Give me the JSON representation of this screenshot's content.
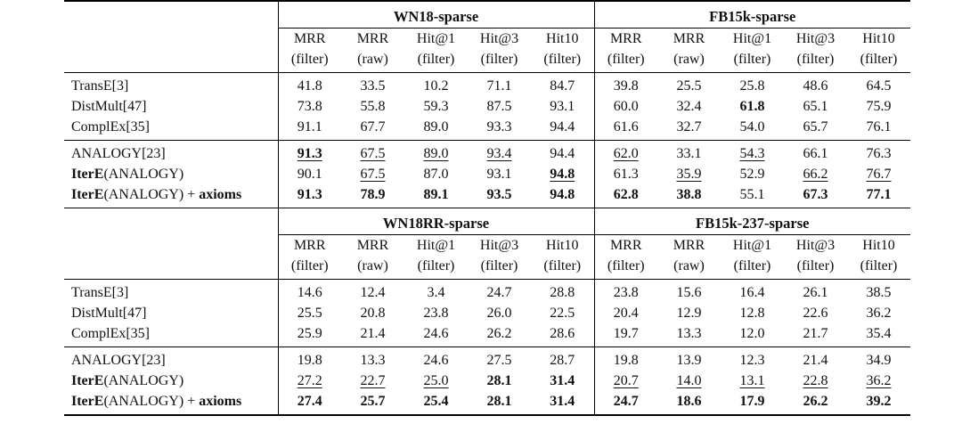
{
  "columns": [
    "MRR",
    "MRR",
    "Hit@1",
    "Hit@3",
    "Hit10"
  ],
  "columns_sub": [
    "(filter)",
    "(raw)",
    "(filter)",
    "(filter)",
    "(filter)"
  ],
  "panels": [
    {
      "left_dataset": "WN18-sparse",
      "right_dataset": "FB15k-sparse",
      "groups": [
        [
          {
            "method": [
              "TransE[3]"
            ],
            "values": [
              "41.8",
              "33.5",
              "10.2",
              "71.1",
              "84.7",
              "39.8",
              "25.5",
              "25.8",
              "48.6",
              "64.5"
            ],
            "bold": [],
            "underline": []
          },
          {
            "method": [
              "DistMult[47]"
            ],
            "values": [
              "73.8",
              "55.8",
              "59.3",
              "87.5",
              "93.1",
              "60.0",
              "32.4",
              "61.8",
              "65.1",
              "75.9"
            ],
            "bold": [
              7
            ],
            "underline": []
          },
          {
            "method": [
              "ComplEx[35]"
            ],
            "values": [
              "91.1",
              "67.7",
              "89.0",
              "93.3",
              "94.4",
              "61.6",
              "32.7",
              "54.0",
              "65.7",
              "76.1"
            ],
            "bold": [],
            "underline": []
          }
        ],
        [
          {
            "method": [
              "ANALOGY[23]"
            ],
            "values": [
              "91.3",
              "67.5",
              "89.0",
              "93.4",
              "94.4",
              "62.0",
              "33.1",
              "54.3",
              "66.1",
              "76.3"
            ],
            "bold": [
              0
            ],
            "underline": [
              0,
              1,
              2,
              3,
              5,
              7
            ]
          },
          {
            "method": [
              "IterE",
              "(ANALOGY)"
            ],
            "values": [
              "90.1",
              "67.5",
              "87.0",
              "93.1",
              "94.8",
              "61.3",
              "35.9",
              "52.9",
              "66.2",
              "76.7"
            ],
            "bold": [
              4
            ],
            "underline": [
              1,
              4,
              6,
              8,
              9
            ]
          },
          {
            "method": [
              "IterE",
              "(ANALOGY) + ",
              "axioms"
            ],
            "values": [
              "91.3",
              "78.9",
              "89.1",
              "93.5",
              "94.8",
              "62.8",
              "38.8",
              "55.1",
              "67.3",
              "77.1"
            ],
            "bold": [
              0,
              1,
              2,
              3,
              4,
              5,
              6,
              8,
              9
            ],
            "underline": []
          }
        ]
      ]
    },
    {
      "left_dataset": "WN18RR-sparse",
      "right_dataset": "FB15k-237-sparse",
      "groups": [
        [
          {
            "method": [
              "TransE[3]"
            ],
            "values": [
              "14.6",
              "12.4",
              "3.4",
              "24.7",
              "28.8",
              "23.8",
              "15.6",
              "16.4",
              "26.1",
              "38.5"
            ],
            "bold": [],
            "underline": []
          },
          {
            "method": [
              "DistMult[47]"
            ],
            "values": [
              "25.5",
              "20.8",
              "23.8",
              "26.0",
              "22.5",
              "20.4",
              "12.9",
              "12.8",
              "22.6",
              "36.2"
            ],
            "bold": [],
            "underline": []
          },
          {
            "method": [
              "ComplEx[35]"
            ],
            "values": [
              "25.9",
              "21.4",
              "24.6",
              "26.2",
              "28.6",
              "19.7",
              "13.3",
              "12.0",
              "21.7",
              "35.4"
            ],
            "bold": [],
            "underline": []
          }
        ],
        [
          {
            "method": [
              "ANALOGY[23]"
            ],
            "values": [
              "19.8",
              "13.3",
              "24.6",
              "27.5",
              "28.7",
              "19.8",
              "13.9",
              "12.3",
              "21.4",
              "34.9"
            ],
            "bold": [],
            "underline": []
          },
          {
            "method": [
              "IterE",
              "(ANALOGY)"
            ],
            "values": [
              "27.2",
              "22.7",
              "25.0",
              "28.1",
              "31.4",
              "20.7",
              "14.0",
              "13.1",
              "22.8",
              "36.2"
            ],
            "bold": [
              3,
              4
            ],
            "underline": [
              0,
              1,
              2,
              5,
              6,
              7,
              8,
              9
            ]
          },
          {
            "method": [
              "IterE",
              "(ANALOGY) + ",
              "axioms"
            ],
            "values": [
              "27.4",
              "25.7",
              "25.4",
              "28.1",
              "31.4",
              "24.7",
              "18.6",
              "17.9",
              "26.2",
              "39.2"
            ],
            "bold": [
              0,
              1,
              2,
              3,
              4,
              5,
              6,
              7,
              8,
              9
            ],
            "underline": []
          }
        ]
      ]
    }
  ]
}
